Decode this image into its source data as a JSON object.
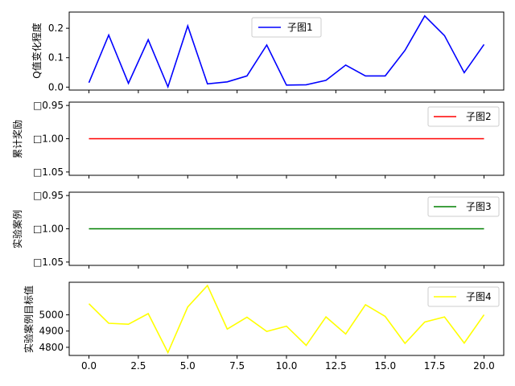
{
  "figure": {
    "type": "line",
    "shared_x_ticks": [
      "0.0",
      "2.5",
      "5.0",
      "7.5",
      "10.0",
      "12.5",
      "15.0",
      "17.5",
      "20.0"
    ]
  },
  "chart_data": [
    {
      "type": "line",
      "ylabel": "Q值变化程度",
      "legend": "子图1",
      "legend_position": "top-center",
      "color": "#0000ff",
      "x": [
        0,
        1,
        2,
        3,
        4,
        5,
        6,
        7,
        8,
        9,
        10,
        11,
        12,
        13,
        14,
        15,
        16,
        17,
        18,
        19,
        20
      ],
      "values": [
        0.015,
        0.177,
        0.013,
        0.161,
        0.001,
        0.208,
        0.011,
        0.018,
        0.038,
        0.143,
        0.007,
        0.008,
        0.023,
        0.075,
        0.038,
        0.038,
        0.125,
        0.242,
        0.175,
        0.049,
        0.145
      ],
      "ylim": [
        -0.01,
        0.255
      ],
      "yticks": [
        0.0,
        0.1,
        0.2
      ],
      "ytick_labels": [
        "0.0",
        "0.1",
        "0.2"
      ],
      "xlim": [
        -1,
        21
      ]
    },
    {
      "type": "line",
      "ylabel": "累计奖励",
      "legend": "子图2",
      "legend_position": "top-right",
      "color": "#ff0000",
      "x": [
        0,
        20
      ],
      "values": [
        -1.0,
        -1.0
      ],
      "ylim": [
        -1.055,
        -0.945
      ],
      "yticks": [
        -0.95,
        -1.0,
        -1.05
      ],
      "ytick_labels": [
        "□0.95",
        "□1.00",
        "□1.05"
      ],
      "y_inverted": true,
      "xlim": [
        -1,
        21
      ]
    },
    {
      "type": "line",
      "ylabel": "实验案例",
      "legend": "子图3",
      "legend_position": "top-right",
      "color": "#008000",
      "x": [
        0,
        20
      ],
      "values": [
        -1.0,
        -1.0
      ],
      "ylim": [
        -1.055,
        -0.945
      ],
      "yticks": [
        -0.95,
        -1.0,
        -1.05
      ],
      "ytick_labels": [
        "□0.95",
        "□1.00",
        "□1.05"
      ],
      "y_inverted": true,
      "xlim": [
        -1,
        21
      ]
    },
    {
      "type": "line",
      "ylabel": "实验案例目标值",
      "legend": "子图4",
      "legend_position": "top-right",
      "color": "#ffff00",
      "x": [
        0,
        1,
        2,
        3,
        4,
        5,
        6,
        7,
        8,
        9,
        10,
        11,
        12,
        13,
        14,
        15,
        16,
        17,
        18,
        19,
        20
      ],
      "values": [
        5068,
        4948,
        4942,
        5007,
        4768,
        5048,
        5180,
        4912,
        4985,
        4898,
        4930,
        4812,
        4987,
        4882,
        5062,
        4990,
        4824,
        4955,
        4987,
        4826,
        5000
      ],
      "ylim": [
        4750,
        5200
      ],
      "yticks": [
        4800,
        4900,
        5000
      ],
      "ytick_labels": [
        "4800",
        "4900",
        "5000"
      ],
      "xlim": [
        -1,
        21
      ]
    }
  ]
}
